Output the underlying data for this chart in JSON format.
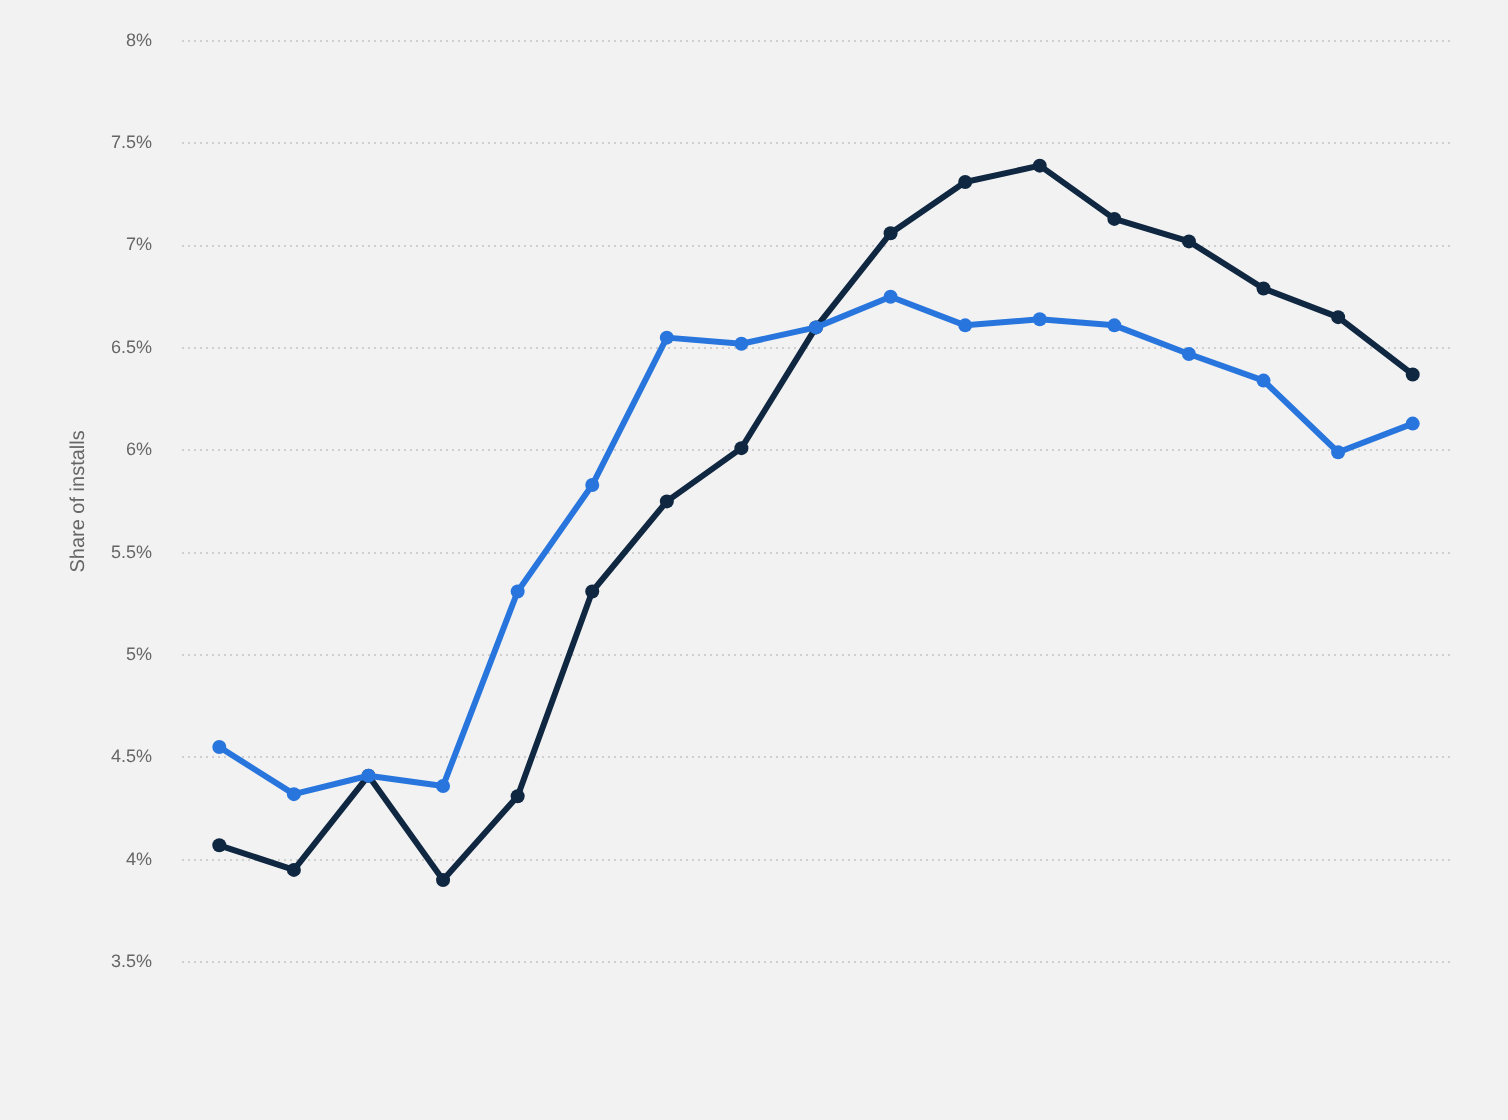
{
  "chart_data": {
    "type": "line",
    "ylabel": "Share of installs",
    "categories": [
      null,
      null,
      null,
      null,
      null,
      null,
      null,
      null,
      null,
      null,
      null,
      null,
      null,
      null,
      null,
      null,
      null
    ],
    "series": [
      {
        "color": "#2876dd",
        "values": [
          4.55,
          4.32,
          4.41,
          4.36,
          5.31,
          5.83,
          6.55,
          6.52,
          6.6,
          6.75,
          6.61,
          6.64,
          6.61,
          6.47,
          6.34,
          5.99,
          6.13
        ]
      },
      {
        "color": "#0f2741",
        "values": [
          4.07,
          3.95,
          4.41,
          3.9,
          4.31,
          5.31,
          5.75,
          6.01,
          6.6,
          7.06,
          7.31,
          7.39,
          7.13,
          7.02,
          6.79,
          6.65,
          6.37
        ]
      }
    ],
    "ylim": [
      3.5,
      8
    ],
    "yticks": [
      {
        "value": 3.5,
        "label": "3.5%"
      },
      {
        "value": 4,
        "label": "4%"
      },
      {
        "value": 4.5,
        "label": "4.5%"
      },
      {
        "value": 5,
        "label": "5%"
      },
      {
        "value": 5.5,
        "label": "5.5%"
      },
      {
        "value": 6,
        "label": "6%"
      },
      {
        "value": 6.5,
        "label": "6.5%"
      },
      {
        "value": 7,
        "label": "7%"
      },
      {
        "value": 7.5,
        "label": "7.5%"
      },
      {
        "value": 8,
        "label": "8%"
      }
    ],
    "grid": "y",
    "legend": false,
    "tick_labels": "y",
    "marker": "circle"
  }
}
